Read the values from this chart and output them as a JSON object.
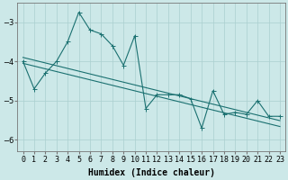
{
  "xlabel": "Humidex (Indice chaleur)",
  "x_values": [
    0,
    1,
    2,
    3,
    4,
    5,
    6,
    7,
    8,
    9,
    10,
    11,
    12,
    13,
    14,
    15,
    16,
    17,
    18,
    19,
    20,
    21,
    22,
    23
  ],
  "y_main": [
    -4.0,
    -4.7,
    -4.3,
    -4.0,
    -3.5,
    -2.75,
    -3.2,
    -3.3,
    -3.6,
    -4.1,
    -3.35,
    -5.2,
    -4.85,
    -4.85,
    -4.85,
    -4.95,
    -5.7,
    -4.75,
    -5.35,
    -5.3,
    -5.35,
    -5.0,
    -5.4,
    -5.4
  ],
  "y_trend1": [
    -4.05,
    -4.12,
    -4.19,
    -4.26,
    -4.33,
    -4.4,
    -4.47,
    -4.54,
    -4.61,
    -4.68,
    -4.75,
    -4.82,
    -4.89,
    -4.96,
    -5.03,
    -5.1,
    -5.17,
    -5.24,
    -5.31,
    -5.38,
    -5.45,
    -5.52,
    -5.59,
    -5.66
  ],
  "y_trend2": [
    -3.9,
    -3.97,
    -4.04,
    -4.11,
    -4.18,
    -4.25,
    -4.32,
    -4.39,
    -4.46,
    -4.53,
    -4.6,
    -4.67,
    -4.74,
    -4.81,
    -4.88,
    -4.95,
    -5.02,
    -5.09,
    -5.16,
    -5.23,
    -5.3,
    -5.37,
    -5.44,
    -5.51
  ],
  "ylim": [
    -6.3,
    -2.5
  ],
  "yticks": [
    -6,
    -5,
    -4,
    -3
  ],
  "bg_color": "#cce8e8",
  "grid_color": "#aacfcf",
  "line_color": "#1a7070",
  "markersize": 2.0,
  "linewidth": 0.8,
  "xlabel_fontsize": 7,
  "tick_fontsize": 6
}
